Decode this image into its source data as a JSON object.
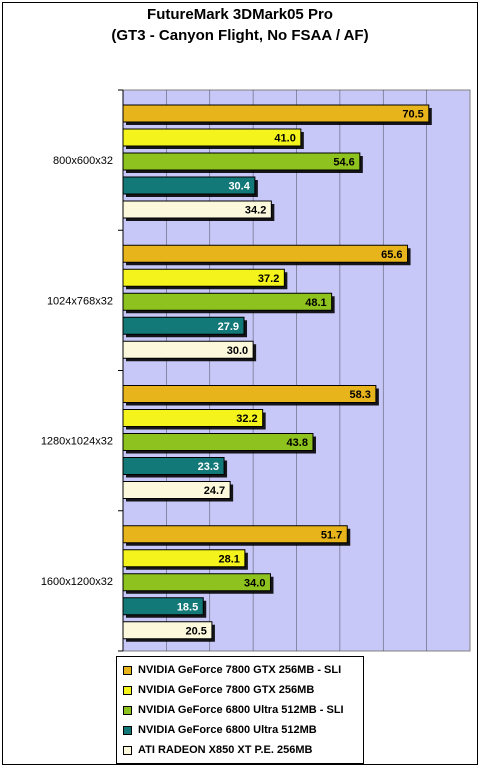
{
  "chart_data": {
    "type": "bar",
    "orientation": "horizontal",
    "title": "FutureMark 3DMark05 Pro",
    "subtitle": "(GT3 - Canyon Flight, No FSAA / AF)",
    "categories": [
      "800x600x32",
      "1024x768x32",
      "1280x1024x32",
      "1600x1200x32"
    ],
    "series": [
      {
        "name": "NVIDIA GeForce 7800 GTX 256MB - SLI",
        "color": "#e8b41c",
        "label_color": "#000000",
        "values": [
          70.5,
          65.6,
          58.3,
          51.7
        ]
      },
      {
        "name": "NVIDIA GeForce 7800 GTX 256MB",
        "color": "#f4f41c",
        "label_color": "#000000",
        "values": [
          41.0,
          37.2,
          32.2,
          28.1
        ]
      },
      {
        "name": "NVIDIA GeForce 6800 Ultra 512MB - SLI",
        "color": "#8ec21e",
        "label_color": "#000000",
        "values": [
          54.6,
          48.1,
          43.8,
          34.0
        ]
      },
      {
        "name": "NVIDIA GeForce 6800 Ultra 512MB",
        "color": "#137878",
        "label_color": "#ffffff",
        "values": [
          30.4,
          27.9,
          23.3,
          18.5
        ]
      },
      {
        "name": "ATI RADEON X850 XT P.E. 256MB",
        "color": "#fbf8dc",
        "label_color": "#000000",
        "values": [
          34.2,
          30.0,
          24.7,
          20.5
        ]
      }
    ],
    "value_labels": [
      "70.5",
      "41.0",
      "54.6",
      "30.4",
      "34.2",
      "65.6",
      "37.2",
      "48.1",
      "27.9",
      "30.0",
      "58.3",
      "32.2",
      "43.8",
      "23.3",
      "24.7",
      "51.7",
      "28.1",
      "34.0",
      "18.5",
      "20.5"
    ],
    "xlim": [
      0,
      80
    ],
    "grid": true,
    "legend_position": "bottom",
    "plot_background": "#c8c8f8"
  }
}
